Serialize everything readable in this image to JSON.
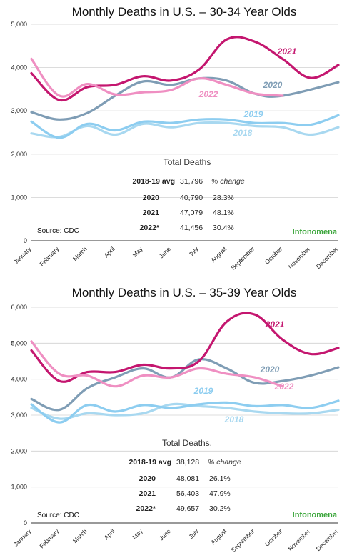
{
  "colors": {
    "2018": "#a8d8f0",
    "2019": "#8dcdf0",
    "2020": "#7f9db5",
    "2021": "#c4166f",
    "2022": "#ef8fc2",
    "brand": "#3aa53a"
  },
  "chart_data": [
    {
      "type": "line",
      "title": "Monthly Deaths in U.S. – 30-34 Year Olds",
      "categories": [
        "January",
        "February",
        "March",
        "April",
        "May",
        "June",
        "July",
        "August",
        "September",
        "October",
        "November",
        "December"
      ],
      "ylim": [
        0,
        5000
      ],
      "yticks": [
        "0",
        "1,000",
        "2,000",
        "3,000",
        "4,000",
        "5,000"
      ],
      "grid": true,
      "series": [
        {
          "name": "2018",
          "values": [
            2480,
            2400,
            2650,
            2450,
            2700,
            2620,
            2720,
            2720,
            2650,
            2620,
            2450,
            2620
          ]
        },
        {
          "name": "2019",
          "values": [
            2750,
            2380,
            2700,
            2550,
            2750,
            2720,
            2800,
            2800,
            2720,
            2720,
            2680,
            2900
          ]
        },
        {
          "name": "2020",
          "values": [
            2970,
            2800,
            2950,
            3350,
            3680,
            3600,
            3750,
            3700,
            3400,
            3350,
            null,
            3660
          ]
        },
        {
          "name": "2021",
          "values": [
            3870,
            3250,
            3550,
            3600,
            3800,
            3700,
            3950,
            4650,
            4600,
            4200,
            3760,
            4060
          ]
        },
        {
          "name": "2022",
          "values": [
            4200,
            3350,
            3620,
            3380,
            3430,
            3480,
            3750,
            3600,
            3400,
            3350,
            null,
            null
          ]
        }
      ],
      "table": {
        "title": "Total Deaths",
        "baseline_label": "2018-19 avg",
        "baseline_value": "31,796",
        "change_header": "% change",
        "rows": [
          {
            "year": "2020",
            "total": "40,790",
            "change": "28.3%"
          },
          {
            "year": "2021",
            "total": "47,079",
            "change": "48.1%"
          },
          {
            "year": "2022*",
            "total": "41,456",
            "change": "30.4%"
          }
        ]
      },
      "source": "Source: CDC",
      "brand": "Infonomena"
    },
    {
      "type": "line",
      "title": "Monthly Deaths in U.S. – 35-39 Year Olds",
      "categories": [
        "January",
        "February",
        "March",
        "April",
        "May",
        "June",
        "July",
        "August",
        "September",
        "October",
        "November",
        "December"
      ],
      "ylim": [
        0,
        6000
      ],
      "yticks": [
        "0",
        "1,000",
        "2,000",
        "3,000",
        "4,000",
        "5,000",
        "6,000"
      ],
      "grid": true,
      "series": [
        {
          "name": "2018",
          "values": [
            3200,
            2900,
            3050,
            3000,
            3050,
            3300,
            3250,
            3200,
            3100,
            3050,
            3050,
            3150
          ]
        },
        {
          "name": "2019",
          "values": [
            3300,
            2800,
            3280,
            3100,
            3280,
            3200,
            3300,
            3350,
            3250,
            3280,
            3200,
            3400
          ]
        },
        {
          "name": "2020",
          "values": [
            3450,
            3150,
            3750,
            4050,
            4300,
            4050,
            4550,
            4300,
            3900,
            3950,
            4100,
            4330
          ]
        },
        {
          "name": "2021",
          "values": [
            4800,
            3950,
            4200,
            4200,
            4400,
            4300,
            4500,
            5600,
            5800,
            5100,
            4700,
            4870
          ]
        },
        {
          "name": "2022",
          "values": [
            5050,
            4150,
            4100,
            3800,
            4100,
            4050,
            4300,
            4150,
            4050,
            3800,
            null,
            null
          ]
        }
      ],
      "table": {
        "title": "Total Deaths.",
        "baseline_label": "2018-19 avg",
        "baseline_value": "38,128",
        "change_header": "% change",
        "rows": [
          {
            "year": "2020",
            "total": "48,081",
            "change": "26.1%"
          },
          {
            "year": "2021",
            "total": "56,403",
            "change": "47.9%"
          },
          {
            "year": "2022*",
            "total": "49,657",
            "change": "30.2%"
          }
        ]
      },
      "source": "Source: CDC",
      "brand": "Infonomena"
    }
  ]
}
